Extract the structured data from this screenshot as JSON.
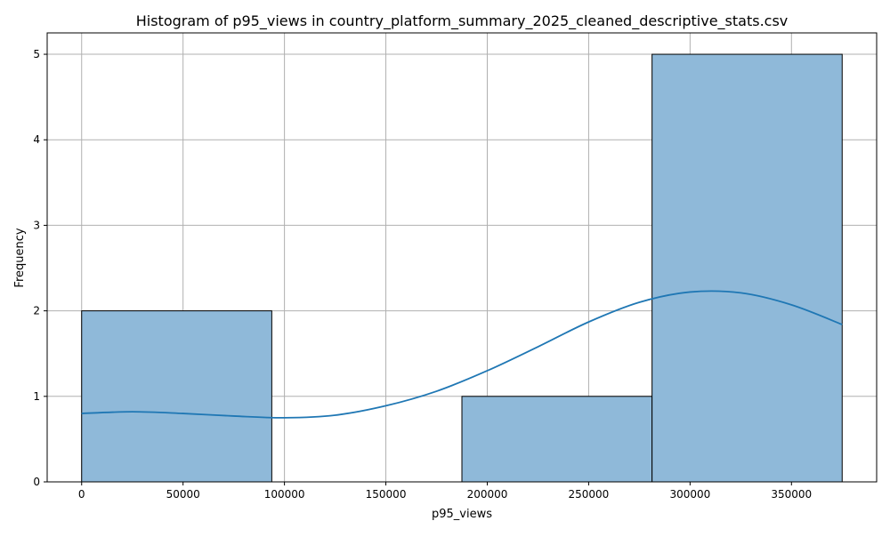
{
  "chart_data": {
    "type": "bar",
    "title": "Histogram of p95_views in country_platform_summary_2025_cleaned_descriptive_stats.csv",
    "xlabel": "p95_views",
    "ylabel": "Frequency",
    "xlim": [
      -17000,
      392000
    ],
    "ylim": [
      0,
      5.25
    ],
    "x_ticks": [
      0,
      50000,
      100000,
      150000,
      200000,
      250000,
      300000,
      350000
    ],
    "y_ticks": [
      0,
      1,
      2,
      3,
      4,
      5
    ],
    "grid": true,
    "legend": "none",
    "bins": [
      {
        "start": 0,
        "end": 93750,
        "count": 2
      },
      {
        "start": 93750,
        "end": 187500,
        "count": 0
      },
      {
        "start": 187500,
        "end": 281250,
        "count": 1
      },
      {
        "start": 281250,
        "end": 375000,
        "count": 5
      }
    ],
    "kde": {
      "x": [
        0,
        25000,
        50000,
        75000,
        100000,
        125000,
        150000,
        175000,
        200000,
        225000,
        250000,
        275000,
        300000,
        325000,
        350000,
        375000
      ],
      "y": [
        0.8,
        0.82,
        0.8,
        0.77,
        0.75,
        0.78,
        0.89,
        1.06,
        1.3,
        1.58,
        1.87,
        2.1,
        2.22,
        2.21,
        2.07,
        1.84
      ]
    },
    "colors": {
      "bar_fill": "#8fb9d9",
      "bar_edge": "#000000",
      "kde_line": "#1f77b4",
      "grid": "#b0b0b0"
    }
  }
}
